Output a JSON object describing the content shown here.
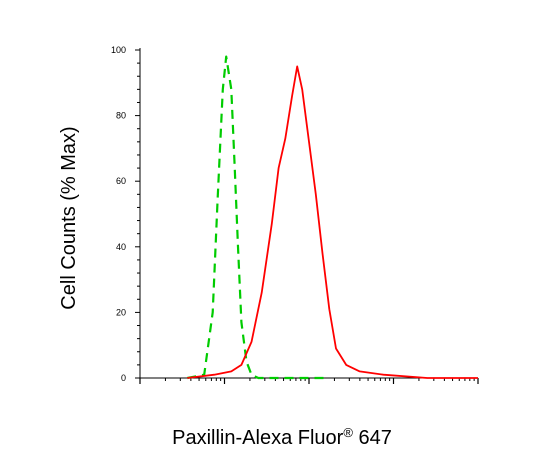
{
  "chart_data": {
    "type": "line",
    "xlabel": "Paxillin-Alexa Fluor",
    "xlabel_superscript": "®",
    "xlabel_suffix": " 647",
    "ylabel": "Cell Counts (% Max)",
    "x_scale": "log",
    "x_tick_labels": [],
    "y_ticks": [
      "0",
      "20",
      "40",
      "60",
      "80",
      "100"
    ],
    "ylim": [
      0,
      100
    ],
    "xlim": [
      0,
      1
    ],
    "grid": false,
    "legend": "none",
    "series": [
      {
        "color": "#00cc00",
        "line_style": "dashed",
        "points": [
          [
            0.14,
            0
          ],
          [
            0.19,
            1
          ],
          [
            0.215,
            20
          ],
          [
            0.23,
            55
          ],
          [
            0.245,
            88
          ],
          [
            0.255,
            98
          ],
          [
            0.27,
            88
          ],
          [
            0.28,
            65
          ],
          [
            0.29,
            40
          ],
          [
            0.3,
            17
          ],
          [
            0.315,
            5
          ],
          [
            0.33,
            1
          ],
          [
            0.35,
            0
          ],
          [
            0.5,
            0
          ],
          [
            0.56,
            0
          ]
        ]
      },
      {
        "color": "#ff0000",
        "line_style": "solid",
        "points": [
          [
            0.14,
            0
          ],
          [
            0.22,
            1
          ],
          [
            0.27,
            2
          ],
          [
            0.3,
            4
          ],
          [
            0.33,
            11
          ],
          [
            0.36,
            26
          ],
          [
            0.39,
            47
          ],
          [
            0.41,
            64
          ],
          [
            0.43,
            73
          ],
          [
            0.45,
            86
          ],
          [
            0.465,
            95
          ],
          [
            0.48,
            88
          ],
          [
            0.5,
            72
          ],
          [
            0.52,
            56
          ],
          [
            0.54,
            38
          ],
          [
            0.56,
            21
          ],
          [
            0.58,
            9
          ],
          [
            0.61,
            4
          ],
          [
            0.65,
            2
          ],
          [
            0.72,
            1
          ],
          [
            0.85,
            0
          ],
          [
            1.0,
            0
          ]
        ]
      }
    ]
  }
}
